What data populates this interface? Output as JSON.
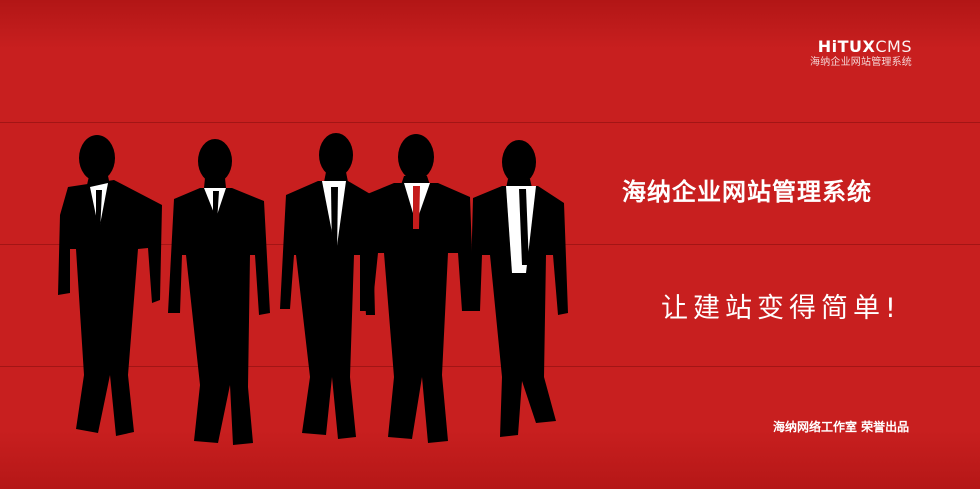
{
  "brand": {
    "logo_bold": "HiTUX",
    "logo_light": "CMS",
    "subtitle": "海纳企业网站管理系统"
  },
  "banner": {
    "title": "海纳企业网站管理系统",
    "slogan": "让建站变得简单!",
    "credit": "海纳网络工作室 荣誉出品"
  },
  "colors": {
    "background": "#c81f1f",
    "silhouette": "#000000",
    "text": "#ffffff"
  }
}
